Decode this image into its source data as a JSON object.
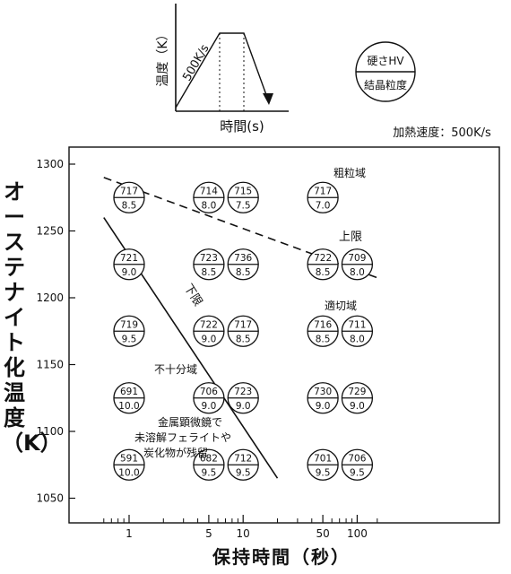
{
  "inset": {
    "y_label": "温度（K）",
    "x_label": "時間(s)",
    "rate_label": "500K/s"
  },
  "legend": {
    "top": "硬さHV",
    "bottom": "結晶粒度"
  },
  "heating_rate": "加熱速度：500K/s",
  "chart_data": {
    "type": "scatter",
    "title": "",
    "xlabel": "保持時間（秒）",
    "ylabel": "オーステナイト化温度（K）",
    "x_scale": "log",
    "xlim": [
      0.5,
      200
    ],
    "ylim": [
      1040,
      1310
    ],
    "x_ticks": [
      1,
      5,
      10,
      50,
      100
    ],
    "y_ticks": [
      1050,
      1100,
      1150,
      1200,
      1250,
      1300
    ],
    "points": [
      {
        "x": 1,
        "y": 1275,
        "hv": "717",
        "grain": "8.5"
      },
      {
        "x": 5,
        "y": 1275,
        "hv": "714",
        "grain": "8.0"
      },
      {
        "x": 10,
        "y": 1275,
        "hv": "715",
        "grain": "7.5"
      },
      {
        "x": 50,
        "y": 1275,
        "hv": "717",
        "grain": "7.0"
      },
      {
        "x": 1,
        "y": 1225,
        "hv": "721",
        "grain": "9.0"
      },
      {
        "x": 5,
        "y": 1225,
        "hv": "723",
        "grain": "8.5"
      },
      {
        "x": 10,
        "y": 1225,
        "hv": "736",
        "grain": "8.5"
      },
      {
        "x": 50,
        "y": 1225,
        "hv": "722",
        "grain": "8.5"
      },
      {
        "x": 100,
        "y": 1225,
        "hv": "709",
        "grain": "8.0"
      },
      {
        "x": 1,
        "y": 1175,
        "hv": "719",
        "grain": "9.5"
      },
      {
        "x": 5,
        "y": 1175,
        "hv": "722",
        "grain": "9.0"
      },
      {
        "x": 10,
        "y": 1175,
        "hv": "717",
        "grain": "8.5"
      },
      {
        "x": 50,
        "y": 1175,
        "hv": "716",
        "grain": "8.5"
      },
      {
        "x": 100,
        "y": 1175,
        "hv": "711",
        "grain": "8.0"
      },
      {
        "x": 1,
        "y": 1125,
        "hv": "691",
        "grain": "10.0"
      },
      {
        "x": 5,
        "y": 1125,
        "hv": "706",
        "grain": "9.0"
      },
      {
        "x": 10,
        "y": 1125,
        "hv": "723",
        "grain": "9.0"
      },
      {
        "x": 50,
        "y": 1125,
        "hv": "730",
        "grain": "9.0"
      },
      {
        "x": 100,
        "y": 1125,
        "hv": "729",
        "grain": "9.0"
      },
      {
        "x": 1,
        "y": 1075,
        "hv": "591",
        "grain": "10.0"
      },
      {
        "x": 5,
        "y": 1075,
        "hv": "682",
        "grain": "9.5"
      },
      {
        "x": 10,
        "y": 1075,
        "hv": "712",
        "grain": "9.5"
      },
      {
        "x": 50,
        "y": 1075,
        "hv": "701",
        "grain": "9.5"
      },
      {
        "x": 100,
        "y": 1075,
        "hv": "706",
        "grain": "9.5"
      }
    ],
    "lines": [
      {
        "name": "上限",
        "style": "dashed",
        "points": [
          [
            0.6,
            1290
          ],
          [
            150,
            1215
          ]
        ]
      },
      {
        "name": "下限",
        "style": "solid",
        "points": [
          [
            0.6,
            1260
          ],
          [
            20,
            1065
          ]
        ]
      }
    ],
    "regions": [
      "粗粒域",
      "適切域",
      "不十分域"
    ],
    "annotation": [
      "金属顕微鏡で",
      "未溶解フェライトや",
      "炭化物が残留"
    ]
  }
}
